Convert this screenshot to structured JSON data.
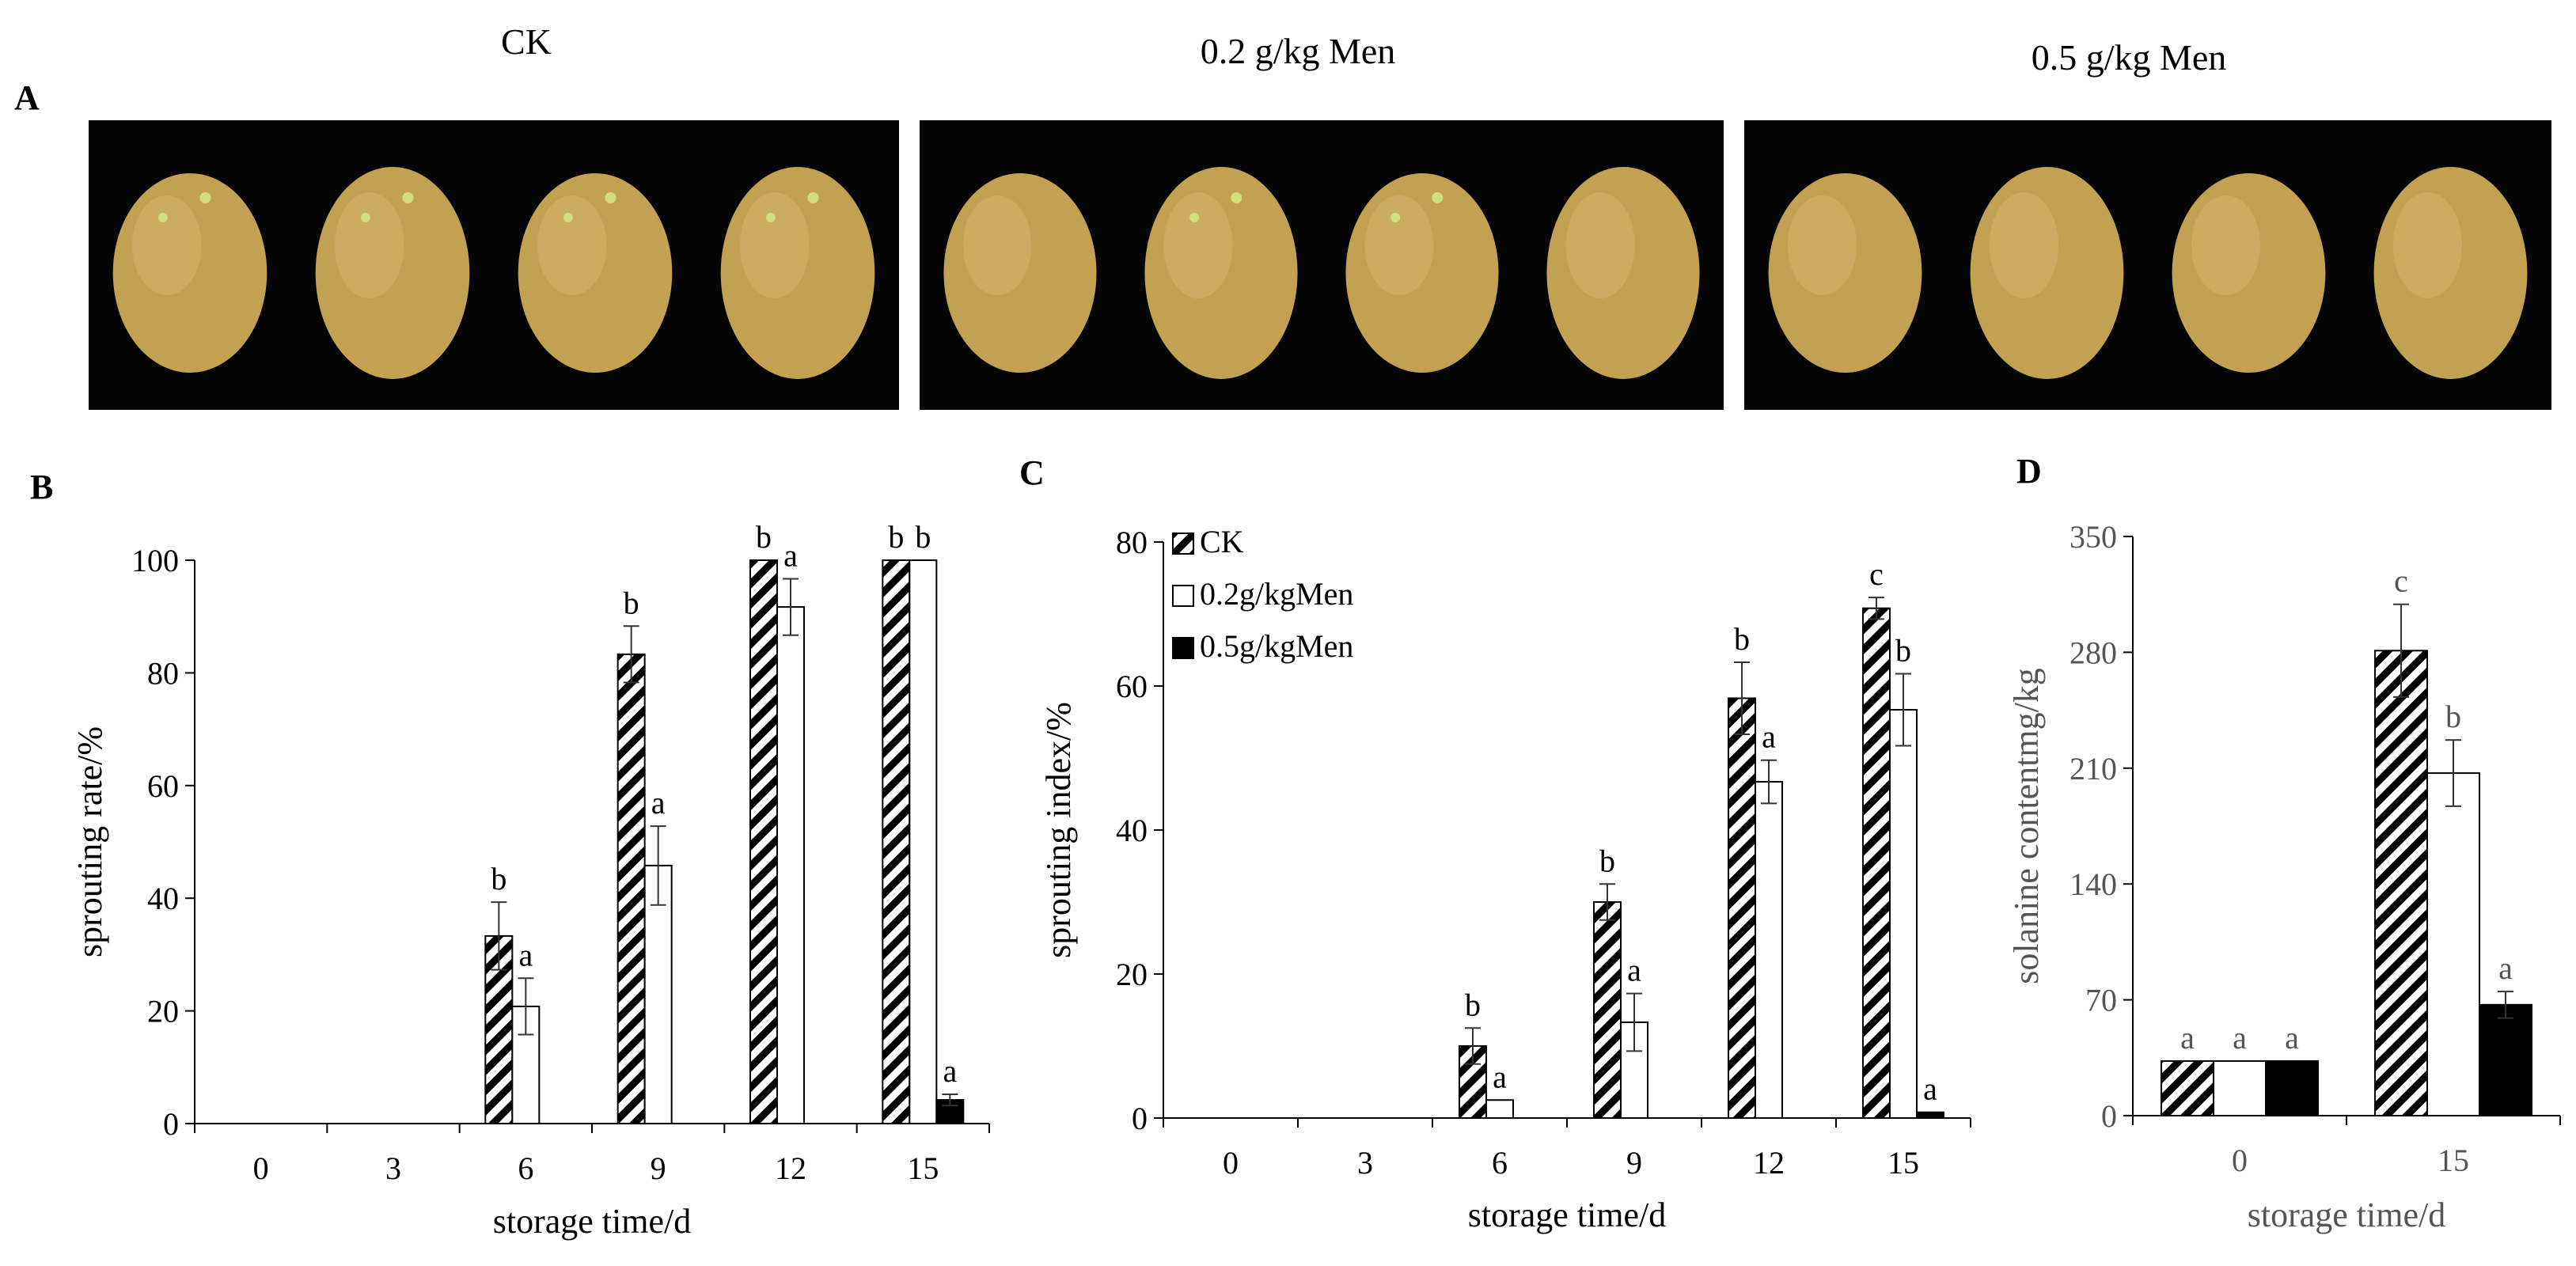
{
  "panel_a": {
    "letter": "A",
    "labels": [
      "CK",
      "0.2 g/kg Men",
      "0.5 g/kg Men"
    ],
    "photo_background": "#050505",
    "potato_color": "#c2a152"
  },
  "chart_data": [
    {
      "letter": "B",
      "type": "bar",
      "ylabel": "sprouting rate/%",
      "xlabel": "storage time/d",
      "ylim": [
        0,
        100
      ],
      "yticks": [
        "0",
        "20",
        "40",
        "60",
        "80",
        "100"
      ],
      "categories": [
        "0",
        "3",
        "6",
        "9",
        "12",
        "15"
      ],
      "series": [
        {
          "values": [
            0,
            0,
            33.3,
            83.3,
            100,
            100
          ],
          "errors": [
            0,
            0,
            6,
            5,
            0,
            0
          ],
          "letters": [
            "",
            "",
            "b",
            "b",
            "b",
            "b"
          ]
        },
        {
          "values": [
            0,
            0,
            20.8,
            45.8,
            91.7,
            100
          ],
          "errors": [
            0,
            0,
            5,
            7,
            5,
            0
          ],
          "letters": [
            "",
            "",
            "a",
            "a",
            "a",
            "b"
          ]
        },
        {
          "values": [
            0,
            0,
            0,
            0,
            0,
            4.2
          ],
          "errors": [
            0,
            0,
            0,
            0,
            0,
            1
          ],
          "letters": [
            "",
            "",
            "",
            "",
            "",
            "a"
          ]
        }
      ]
    },
    {
      "letter": "C",
      "type": "bar",
      "ylabel": "sprouting index/%",
      "xlabel": "storage time/d",
      "ylim": [
        0,
        80
      ],
      "yticks": [
        "0",
        "20",
        "40",
        "60",
        "80"
      ],
      "categories": [
        "0",
        "3",
        "6",
        "9",
        "12",
        "15"
      ],
      "legend": [
        "CK",
        "0.2g/kgMen",
        "0.5g/kgMen"
      ],
      "series": [
        {
          "values": [
            0,
            0,
            10,
            30,
            58.3,
            70.8
          ],
          "errors": [
            0,
            0,
            2.5,
            2.5,
            5,
            1.5
          ],
          "letters": [
            "",
            "",
            "b",
            "b",
            "b",
            "c"
          ]
        },
        {
          "values": [
            0,
            0,
            2.5,
            13.3,
            46.7,
            56.7
          ],
          "errors": [
            0,
            0,
            0,
            4,
            3,
            5
          ],
          "letters": [
            "",
            "",
            "a",
            "a",
            "a",
            "b"
          ]
        },
        {
          "values": [
            0,
            0,
            0,
            0,
            0,
            0.8
          ],
          "errors": [
            0,
            0,
            0,
            0,
            0,
            0
          ],
          "letters": [
            "",
            "",
            "",
            "",
            "",
            "a"
          ]
        }
      ]
    },
    {
      "letter": "D",
      "type": "bar",
      "ylabel": "solanine contentmg/kg",
      "xlabel": "storage time/d",
      "ylim": [
        0,
        350
      ],
      "yticks": [
        "0",
        "70",
        "140",
        "210",
        "280",
        "350"
      ],
      "categories": [
        "0",
        "15"
      ],
      "series": [
        {
          "values": [
            33,
            281
          ],
          "errors": [
            0,
            28
          ],
          "letters": [
            "a",
            "c"
          ]
        },
        {
          "values": [
            33,
            207
          ],
          "errors": [
            0,
            20
          ],
          "letters": [
            "a",
            "b"
          ]
        },
        {
          "values": [
            33,
            67
          ],
          "errors": [
            0,
            8
          ],
          "letters": [
            "a",
            "a"
          ]
        }
      ]
    }
  ]
}
